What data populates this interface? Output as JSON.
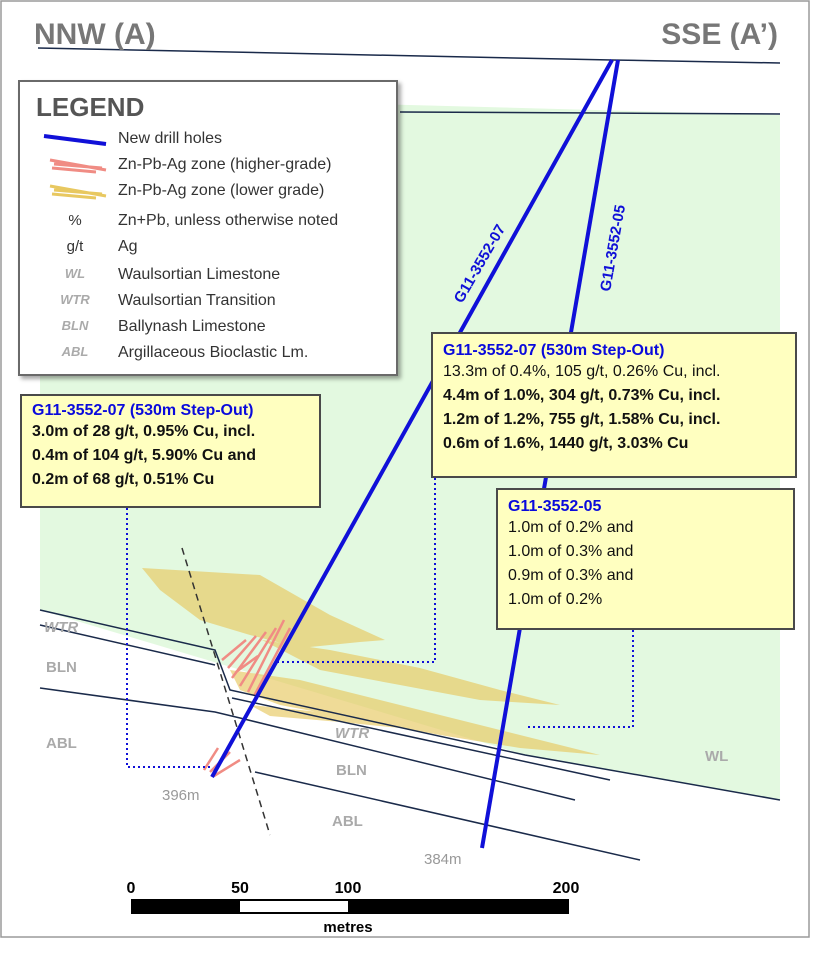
{
  "section": {
    "left_label": "NNW (A)",
    "right_label": "SSE (A’)"
  },
  "legend": {
    "title": "LEGEND",
    "items": [
      {
        "symbol": "",
        "label": "New drill holes"
      },
      {
        "symbol": "",
        "label": "Zn-Pb-Ag zone (higher-grade)"
      },
      {
        "symbol": "",
        "label": "Zn-Pb-Ag zone (lower grade)"
      },
      {
        "symbol": "%",
        "label": "Zn+Pb, unless otherwise noted"
      },
      {
        "symbol": "g/t",
        "label": "Ag"
      },
      {
        "symbol": "WL",
        "label": "Waulsortian Limestone"
      },
      {
        "symbol": "WTR",
        "label": "Waulsortian Transition"
      },
      {
        "symbol": "BLN",
        "label": "Ballynash Limestone"
      },
      {
        "symbol": "ABL",
        "label": "Argillaceous Bioclastic Lm."
      }
    ]
  },
  "holes": {
    "hole_07": {
      "name": "G11-3552-07",
      "depth": "396m"
    },
    "hole_05": {
      "name": "G11-3552-05",
      "depth": "384m"
    }
  },
  "callouts": {
    "left": {
      "title": "G11-3552-07 (530m Step-Out)",
      "lines": [
        "3.0m of 28 g/t, 0.95% Cu, incl.",
        "0.4m of 104 g/t, 5.90% Cu and",
        "0.2m of 68 g/t, 0.51% Cu"
      ]
    },
    "right_top": {
      "title": "G11-3552-07 (530m Step-Out)",
      "lines": [
        "13.3m of 0.4%, 105 g/t, 0.26% Cu, incl.",
        "4.4m of 1.0%, 304 g/t, 0.73% Cu, incl.",
        "1.2m of 1.2%, 755 g/t, 1.58% Cu, incl.",
        "0.6m of 1.6%, 1440 g/t, 3.03% Cu"
      ]
    },
    "right_bottom": {
      "title": "G11-3552-05",
      "lines": [
        "1.0m of 0.2% and",
        "1.0m of 0.3% and",
        "0.9m of 0.3% and",
        "1.0m of 0.2%"
      ]
    }
  },
  "units": {
    "wtr_left": "WTR",
    "bln_left": "BLN",
    "abl_left": "ABL",
    "wtr_mid": "WTR",
    "bln_mid": "BLN",
    "abl_mid": "ABL",
    "wl_right": "WL"
  },
  "scale_bar": {
    "ticks": [
      "0",
      "50",
      "100",
      "200"
    ],
    "unit": "metres"
  },
  "colors": {
    "drill_hole": "#1010d8",
    "waulsortian_fill": "#e3f9e0",
    "higher_grade": "#f08c84",
    "lower_grade": "#e8c860",
    "callout_bg": "#ffffc0"
  }
}
